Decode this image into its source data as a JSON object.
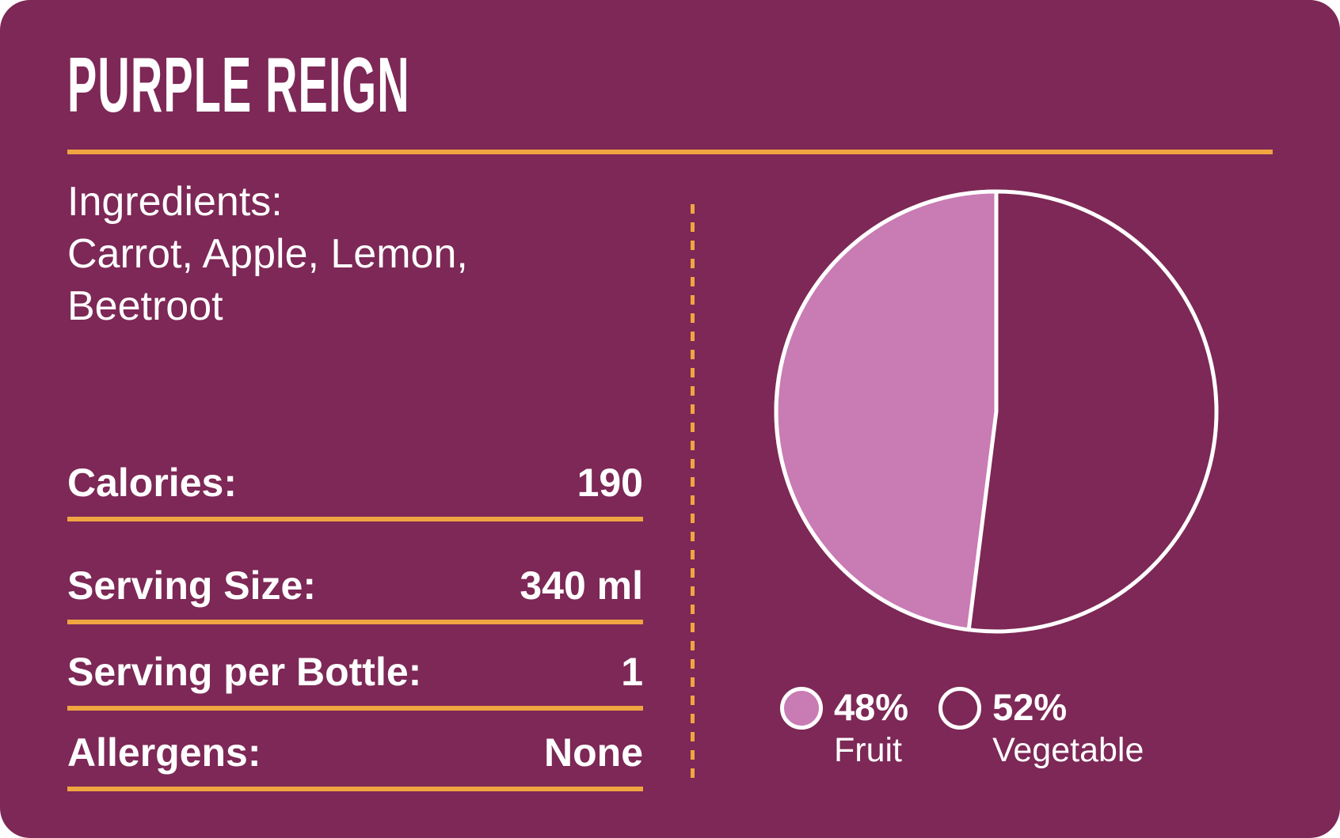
{
  "title": "PURPLE REIGN",
  "colors": {
    "background": "#7D2856",
    "accent_orange": "#F0A541",
    "text": "#FFFFFF",
    "fruit_pink": "#C97BB3",
    "pie_outline": "#FFFFFF"
  },
  "ingredients": {
    "heading": "Ingredients:",
    "line1": "Carrot, Apple, Lemon,",
    "line2": "Beetroot"
  },
  "nutrition": {
    "rows": [
      {
        "label": "Calories:",
        "value": "190"
      },
      {
        "label": "Serving Size:",
        "value": "340 ml"
      },
      {
        "label": "Serving per Bottle:",
        "value": "1"
      },
      {
        "label": "Allergens:",
        "value": "None"
      }
    ]
  },
  "chart_data": {
    "type": "pie",
    "categories": [
      "Fruit",
      "Vegetable"
    ],
    "values": [
      48,
      52
    ],
    "unit": "%",
    "slice_colors": [
      "#C97BB3",
      "none"
    ],
    "outline_color": "#FFFFFF",
    "start_angle": "12 o'clock",
    "fruit_slice_direction": "counterclockwise (left half)",
    "legend_position": "bottom",
    "legend": [
      {
        "pct": "48%",
        "label": "Fruit"
      },
      {
        "pct": "52%",
        "label": "Vegetable"
      }
    ]
  }
}
